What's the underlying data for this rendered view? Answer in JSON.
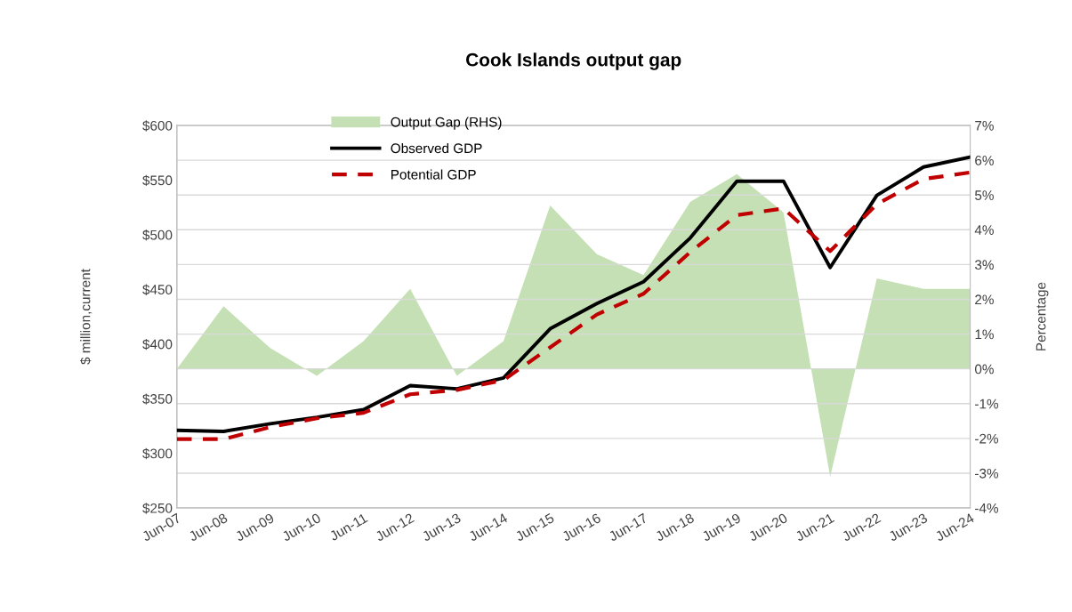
{
  "chart_data": {
    "type": "line",
    "title": "Cook Islands output gap",
    "ylabel": "$ million,current",
    "y2label": "Percentage",
    "categories": [
      "Jun-07",
      "Jun-08",
      "Jun-09",
      "Jun-10",
      "Jun-11",
      "Jun-12",
      "Jun-13",
      "Jun-14",
      "Jun-15",
      "Jun-16",
      "Jun-17",
      "Jun-18",
      "Jun-19",
      "Jun-20",
      "Jun-21",
      "Jun-22",
      "Jun-23",
      "Jun-24"
    ],
    "series": [
      {
        "name": "Output Gap (RHS)",
        "type": "area",
        "axis": "y2",
        "color": "#c5e0b4",
        "values": [
          0,
          1.8,
          0.6,
          -0.2,
          0.8,
          2.3,
          -0.2,
          0.8,
          4.7,
          3.3,
          2.7,
          4.8,
          5.6,
          4.5,
          -3.1,
          2.6,
          2.3,
          2.3
        ]
      },
      {
        "name": "Observed GDP",
        "color": "#000000",
        "line_style": "solid",
        "values": [
          321,
          320,
          327,
          333,
          340,
          362,
          359,
          369,
          414,
          437,
          457,
          497,
          549,
          549,
          470,
          536,
          562,
          571
        ]
      },
      {
        "name": "Potential GDP",
        "color": "#c00000",
        "line_style": "dashed",
        "values": [
          313,
          313,
          324,
          332,
          337,
          354,
          358,
          367,
          397,
          427,
          446,
          484,
          518,
          524,
          485,
          528,
          551,
          557
        ]
      }
    ],
    "ylim": [
      250,
      600
    ],
    "yticks": [
      {
        "value": 250,
        "label": "$250"
      },
      {
        "value": 300,
        "label": "$300"
      },
      {
        "value": 350,
        "label": "$350"
      },
      {
        "value": 400,
        "label": "$400"
      },
      {
        "value": 450,
        "label": "$450"
      },
      {
        "value": 500,
        "label": "$500"
      },
      {
        "value": 550,
        "label": "$550"
      },
      {
        "value": 600,
        "label": "$600"
      }
    ],
    "y2lim": [
      -4,
      7
    ],
    "y2ticks": [
      {
        "value": -4,
        "label": "-4%"
      },
      {
        "value": -3,
        "label": "-3%"
      },
      {
        "value": -2,
        "label": "-2%"
      },
      {
        "value": -1,
        "label": "-1%"
      },
      {
        "value": 0,
        "label": "0%"
      },
      {
        "value": 1,
        "label": "1%"
      },
      {
        "value": 2,
        "label": "2%"
      },
      {
        "value": 3,
        "label": "3%"
      },
      {
        "value": 4,
        "label": "4%"
      },
      {
        "value": 5,
        "label": "5%"
      },
      {
        "value": 6,
        "label": "6%"
      },
      {
        "value": 7,
        "label": "7%"
      }
    ],
    "grid": "y",
    "legend": "top left",
    "marker": "none"
  }
}
